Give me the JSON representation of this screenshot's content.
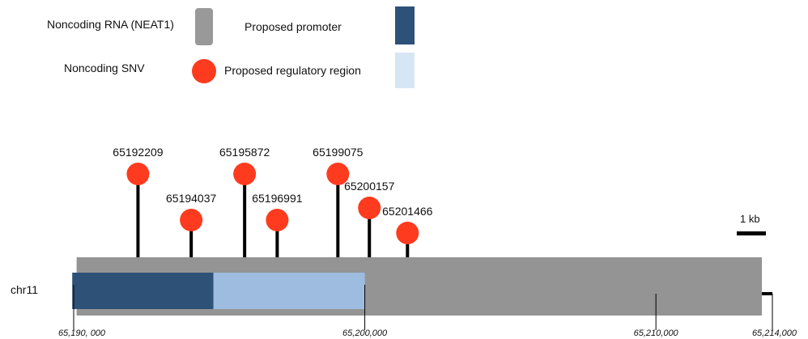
{
  "legend": {
    "noncoding_rna_label": "Noncoding RNA (NEAT1)",
    "noncoding_rna_color": "#999999",
    "promoter_label": "Proposed promoter",
    "promoter_color": "#2e5178",
    "snv_label": "Noncoding SNV",
    "snv_color": "#ff3b1f",
    "regulatory_label": "Proposed regulatory region",
    "regulatory_color": "#d7e6f5"
  },
  "track": {
    "chromosome_label": "chr11",
    "rna_color": "#949494",
    "promoter_color": "#2e5178",
    "regulatory_color": "#9dbce0"
  },
  "scale_bar_label": "1 kb",
  "axis_ticks": [
    {
      "label": "65,190, 000",
      "value": 65190000
    },
    {
      "label": "65,200,000",
      "value": 65200000
    },
    {
      "label": "65,210,000",
      "value": 65210000
    },
    {
      "label": "65,214,000",
      "value": 65214000
    }
  ],
  "snvs": [
    {
      "label": "65192209",
      "position": 65192209
    },
    {
      "label": "65194037",
      "position": 65194037
    },
    {
      "label": "65195872",
      "position": 65195872
    },
    {
      "label": "65196991",
      "position": 65196991
    },
    {
      "label": "65199075",
      "position": 65199075
    },
    {
      "label": "65200157",
      "position": 65200157
    },
    {
      "label": "65201466",
      "position": 65201466
    }
  ]
}
